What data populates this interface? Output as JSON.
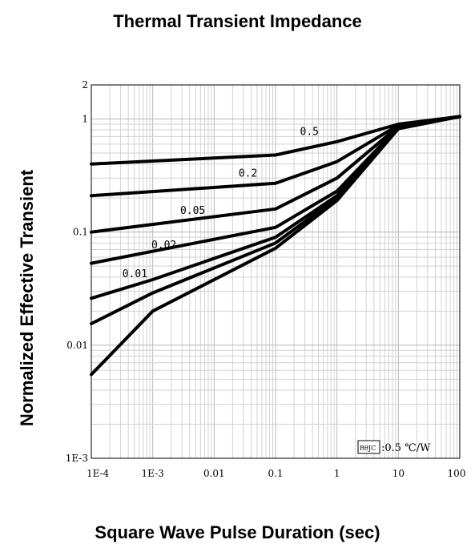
{
  "chart_data": {
    "type": "line",
    "title": "Thermal Transient Impedance",
    "xlabel": "Square Wave Pulse Duration (sec)",
    "ylabel": "Normalized Effective Transient",
    "x_scale": "log",
    "y_scale": "log",
    "xlim": [
      0.0001,
      100
    ],
    "ylim": [
      0.001,
      2
    ],
    "x_ticks": [
      {
        "value": 0.0001,
        "label": "1E-4"
      },
      {
        "value": 0.001,
        "label": "1E-3"
      },
      {
        "value": 0.01,
        "label": "0.01"
      },
      {
        "value": 0.1,
        "label": "0.1"
      },
      {
        "value": 1,
        "label": "1"
      },
      {
        "value": 10,
        "label": "10"
      },
      {
        "value": 100,
        "label": "100"
      }
    ],
    "y_ticks": [
      {
        "value": 0.001,
        "label": "1E-3"
      },
      {
        "value": 0.01,
        "label": "0.01"
      },
      {
        "value": 0.1,
        "label": "0.1"
      },
      {
        "value": 1,
        "label": "1"
      },
      {
        "value": 2,
        "label": "2"
      }
    ],
    "grid": true,
    "series": [
      {
        "name": "0.5",
        "points": [
          [
            0.0001,
            0.4
          ],
          [
            0.1,
            0.48
          ],
          [
            1,
            0.63
          ],
          [
            10,
            0.9
          ],
          [
            100,
            1.05
          ]
        ]
      },
      {
        "name": "0.2",
        "points": [
          [
            0.0001,
            0.21
          ],
          [
            0.1,
            0.27
          ],
          [
            1,
            0.42
          ],
          [
            10,
            0.88
          ],
          [
            100,
            1.05
          ]
        ]
      },
      {
        "name": "0.05",
        "points": [
          [
            0.0001,
            0.1
          ],
          [
            0.1,
            0.16
          ],
          [
            1,
            0.3
          ],
          [
            10,
            0.86
          ],
          [
            100,
            1.05
          ]
        ]
      },
      {
        "name": "0.02",
        "points": [
          [
            0.0001,
            0.053
          ],
          [
            0.1,
            0.11
          ],
          [
            1,
            0.23
          ],
          [
            10,
            0.85
          ],
          [
            100,
            1.05
          ]
        ]
      },
      {
        "name": "0.01",
        "points": [
          [
            0.0001,
            0.026
          ],
          [
            0.001,
            0.038
          ],
          [
            0.1,
            0.09
          ],
          [
            1,
            0.21
          ],
          [
            10,
            0.84
          ],
          [
            100,
            1.05
          ]
        ]
      },
      {
        "name": "",
        "points": [
          [
            0.0001,
            0.0155
          ],
          [
            0.001,
            0.029
          ],
          [
            0.1,
            0.08
          ],
          [
            1,
            0.2
          ],
          [
            10,
            0.83
          ],
          [
            100,
            1.05
          ]
        ]
      },
      {
        "name": "",
        "points": [
          [
            0.0001,
            0.0055
          ],
          [
            0.001,
            0.02
          ],
          [
            0.1,
            0.072
          ],
          [
            1,
            0.19
          ],
          [
            10,
            0.82
          ],
          [
            100,
            1.05
          ]
        ]
      }
    ],
    "annotation": {
      "label_box": "RθJC",
      "text": ":0.5 ℃/W"
    }
  }
}
